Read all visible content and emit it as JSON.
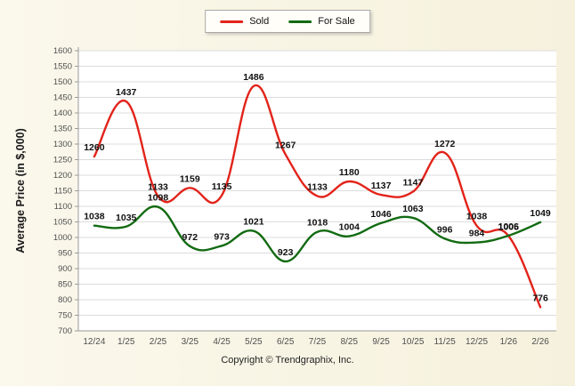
{
  "chart_data": {
    "type": "line",
    "title": "",
    "x_categories": [
      "12/24",
      "1/25",
      "2/25",
      "3/25",
      "4/25",
      "5/25",
      "6/25",
      "7/25",
      "8/25",
      "9/25",
      "10/25",
      "11/25",
      "12/25",
      "1/26",
      "2/26"
    ],
    "series": [
      {
        "name": "Sold",
        "color": "#e2231a",
        "values": [
          1260,
          1437,
          1133,
          1159,
          1135,
          1486,
          1267,
          1133,
          1180,
          1137,
          1147,
          1272,
          1038,
          1005,
          776
        ]
      },
      {
        "name": "For Sale",
        "color": "#126b12",
        "values": [
          1038,
          1035,
          1098,
          972,
          973,
          1021,
          923,
          1018,
          1004,
          1046,
          1063,
          996,
          984,
          1006,
          1049
        ]
      }
    ],
    "xlabel": "",
    "ylabel": "Average Price (in $,000)",
    "ylim": [
      700,
      1600
    ],
    "ytick_step": 50,
    "grid": true,
    "legend_position": "top-center"
  },
  "footer": {
    "copyright": "Copyright © Trendgraphix, Inc."
  }
}
